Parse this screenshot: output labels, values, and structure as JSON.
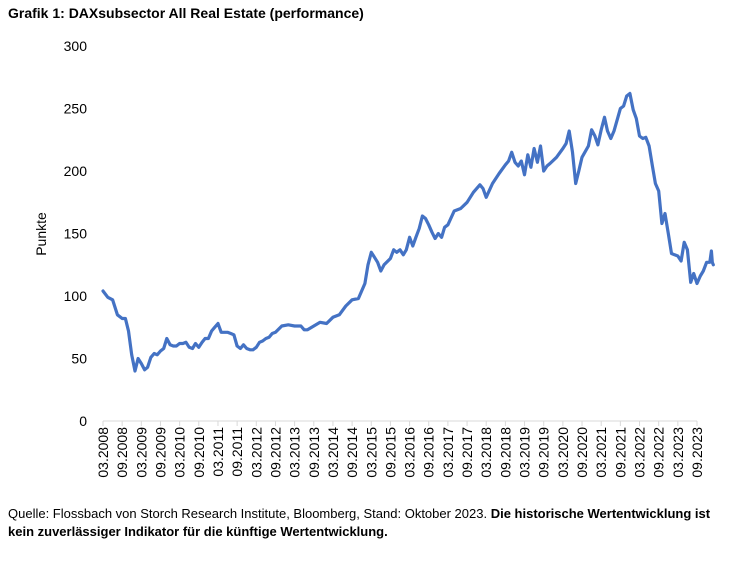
{
  "chart_data": {
    "type": "line",
    "title": "Grafik 1: DAXsubsector All Real Estate (performance)",
    "ylabel": "Punkte",
    "xlabel": "",
    "ylim": [
      0,
      300
    ],
    "yticks": [
      0,
      50,
      100,
      150,
      200,
      250,
      300
    ],
    "xticklabels": [
      "03.2008",
      "09.2008",
      "03.2009",
      "09.2009",
      "03.2010",
      "09.2010",
      "03.2011",
      "09.2011",
      "03.2012",
      "09.2012",
      "03.2013",
      "09.2013",
      "03.2014",
      "09.2014",
      "03.2015",
      "09.2015",
      "03.2016",
      "09.2016",
      "03.2017",
      "09.2017",
      "03.2018",
      "09.2018",
      "03.2019",
      "09.2019",
      "03.2020",
      "09.2020",
      "03.2021",
      "09.2021",
      "03.2022",
      "09.2022",
      "03.2023",
      "09.2023"
    ],
    "grid": false,
    "color": "#4472C4",
    "series": [
      {
        "name": "DAXsubsector All Real Estate",
        "points": [
          [
            0.0,
            104
          ],
          [
            0.25,
            99
          ],
          [
            0.5,
            97
          ],
          [
            0.75,
            85
          ],
          [
            1.0,
            82
          ],
          [
            1.17,
            82
          ],
          [
            1.33,
            72
          ],
          [
            1.5,
            53
          ],
          [
            1.67,
            40
          ],
          [
            1.83,
            50
          ],
          [
            2.0,
            46
          ],
          [
            2.17,
            41
          ],
          [
            2.33,
            43
          ],
          [
            2.5,
            51
          ],
          [
            2.67,
            54
          ],
          [
            2.83,
            53
          ],
          [
            3.0,
            56
          ],
          [
            3.17,
            58
          ],
          [
            3.33,
            66
          ],
          [
            3.5,
            61
          ],
          [
            3.67,
            60
          ],
          [
            3.83,
            60
          ],
          [
            4.0,
            62
          ],
          [
            4.17,
            62
          ],
          [
            4.33,
            63
          ],
          [
            4.5,
            59
          ],
          [
            4.67,
            58
          ],
          [
            4.83,
            62
          ],
          [
            5.0,
            59
          ],
          [
            5.17,
            63
          ],
          [
            5.33,
            66
          ],
          [
            5.5,
            66
          ],
          [
            5.67,
            72
          ],
          [
            5.83,
            75
          ],
          [
            6.0,
            78
          ],
          [
            6.17,
            71
          ],
          [
            6.33,
            71
          ],
          [
            6.5,
            71
          ],
          [
            6.67,
            70
          ],
          [
            6.83,
            69
          ],
          [
            7.0,
            60
          ],
          [
            7.17,
            58
          ],
          [
            7.33,
            61
          ],
          [
            7.5,
            58
          ],
          [
            7.67,
            57
          ],
          [
            7.83,
            57
          ],
          [
            8.0,
            59
          ],
          [
            8.17,
            63
          ],
          [
            8.33,
            64
          ],
          [
            8.5,
            66
          ],
          [
            8.67,
            67
          ],
          [
            8.83,
            70
          ],
          [
            9.0,
            71
          ],
          [
            9.33,
            76
          ],
          [
            9.67,
            77
          ],
          [
            10.0,
            76
          ],
          [
            10.33,
            76
          ],
          [
            10.5,
            73
          ],
          [
            10.67,
            73
          ],
          [
            11.0,
            76
          ],
          [
            11.33,
            79
          ],
          [
            11.67,
            78
          ],
          [
            12.0,
            83
          ],
          [
            12.33,
            85
          ],
          [
            12.67,
            92
          ],
          [
            13.0,
            97
          ],
          [
            13.33,
            98
          ],
          [
            13.67,
            110
          ],
          [
            13.83,
            125
          ],
          [
            14.0,
            135
          ],
          [
            14.17,
            131
          ],
          [
            14.33,
            127
          ],
          [
            14.5,
            120
          ],
          [
            14.67,
            125
          ],
          [
            15.0,
            130
          ],
          [
            15.17,
            137
          ],
          [
            15.33,
            135
          ],
          [
            15.5,
            137
          ],
          [
            15.67,
            133
          ],
          [
            15.83,
            137
          ],
          [
            16.0,
            147
          ],
          [
            16.17,
            140
          ],
          [
            16.33,
            147
          ],
          [
            16.5,
            154
          ],
          [
            16.67,
            164
          ],
          [
            16.83,
            162
          ],
          [
            17.0,
            157
          ],
          [
            17.17,
            151
          ],
          [
            17.33,
            146
          ],
          [
            17.5,
            150
          ],
          [
            17.67,
            147
          ],
          [
            17.83,
            155
          ],
          [
            18.0,
            157
          ],
          [
            18.33,
            168
          ],
          [
            18.67,
            170
          ],
          [
            19.0,
            175
          ],
          [
            19.33,
            183
          ],
          [
            19.67,
            189
          ],
          [
            19.83,
            186
          ],
          [
            20.0,
            179
          ],
          [
            20.33,
            190
          ],
          [
            20.67,
            198
          ],
          [
            21.0,
            205
          ],
          [
            21.17,
            208
          ],
          [
            21.33,
            215
          ],
          [
            21.5,
            207
          ],
          [
            21.67,
            204
          ],
          [
            21.83,
            208
          ],
          [
            22.0,
            197
          ],
          [
            22.17,
            213
          ],
          [
            22.33,
            203
          ],
          [
            22.5,
            218
          ],
          [
            22.67,
            207
          ],
          [
            22.83,
            220
          ],
          [
            23.0,
            200
          ],
          [
            23.17,
            204
          ],
          [
            23.33,
            206
          ],
          [
            23.67,
            211
          ],
          [
            24.0,
            218
          ],
          [
            24.17,
            222
          ],
          [
            24.33,
            232
          ],
          [
            24.5,
            215
          ],
          [
            24.67,
            190
          ],
          [
            24.83,
            200
          ],
          [
            25.0,
            211
          ],
          [
            25.33,
            220
          ],
          [
            25.5,
            233
          ],
          [
            25.67,
            228
          ],
          [
            25.83,
            221
          ],
          [
            26.0,
            233
          ],
          [
            26.17,
            243
          ],
          [
            26.33,
            232
          ],
          [
            26.5,
            226
          ],
          [
            26.67,
            232
          ],
          [
            27.0,
            250
          ],
          [
            27.17,
            252
          ],
          [
            27.33,
            260
          ],
          [
            27.5,
            262
          ],
          [
            27.67,
            249
          ],
          [
            27.83,
            242
          ],
          [
            28.0,
            228
          ],
          [
            28.17,
            226
          ],
          [
            28.33,
            227
          ],
          [
            28.5,
            220
          ],
          [
            28.67,
            204
          ],
          [
            28.83,
            190
          ],
          [
            29.0,
            184
          ],
          [
            29.17,
            158
          ],
          [
            29.33,
            166
          ],
          [
            29.5,
            150
          ],
          [
            29.67,
            134
          ],
          [
            29.83,
            133
          ],
          [
            30.0,
            132
          ],
          [
            30.17,
            128
          ],
          [
            30.33,
            143
          ],
          [
            30.5,
            137
          ],
          [
            30.67,
            111
          ],
          [
            30.83,
            118
          ],
          [
            31.0,
            110
          ],
          [
            31.17,
            116
          ],
          [
            31.33,
            120
          ],
          [
            31.5,
            127
          ],
          [
            31.67,
            127
          ],
          [
            31.75,
            136
          ],
          [
            31.8,
            127
          ],
          [
            31.85,
            125
          ]
        ]
      }
    ]
  },
  "footer": {
    "source_text": "Quelle: Flossbach von Storch Research Institute, Bloomberg, Stand: Oktober 2023. ",
    "disclaimer": "Die historische Wertentwicklung ist kein zuverlässiger Indikator für die künftige Wertentwicklung."
  }
}
